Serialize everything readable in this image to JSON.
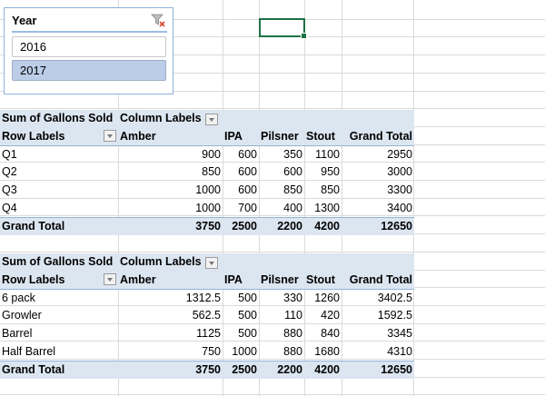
{
  "slicer": {
    "title": "Year",
    "items": [
      {
        "label": "2016",
        "selected": false
      },
      {
        "label": "2017",
        "selected": true
      }
    ],
    "clear_filter_icon": "filter-clear-icon"
  },
  "pivot1": {
    "value_label": "Sum of Gallons Sold",
    "column_labels": "Column Labels",
    "row_labels": "Row Labels",
    "columns": [
      "Amber",
      "IPA",
      "Pilsner",
      "Stout",
      "Grand Total"
    ],
    "rows": [
      {
        "label": "Q1",
        "values": [
          "900",
          "600",
          "350",
          "1100",
          "2950"
        ]
      },
      {
        "label": "Q2",
        "values": [
          "850",
          "600",
          "600",
          "950",
          "3000"
        ]
      },
      {
        "label": "Q3",
        "values": [
          "1000",
          "600",
          "850",
          "850",
          "3300"
        ]
      },
      {
        "label": "Q4",
        "values": [
          "1000",
          "700",
          "400",
          "1300",
          "3400"
        ]
      }
    ],
    "total": {
      "label": "Grand Total",
      "values": [
        "3750",
        "2500",
        "2200",
        "4200",
        "12650"
      ]
    }
  },
  "pivot2": {
    "value_label": "Sum of Gallons Sold",
    "column_labels": "Column Labels",
    "row_labels": "Row Labels",
    "columns": [
      "Amber",
      "IPA",
      "Pilsner",
      "Stout",
      "Grand Total"
    ],
    "rows": [
      {
        "label": "6 pack",
        "values": [
          "1312.5",
          "500",
          "330",
          "1260",
          "3402.5"
        ]
      },
      {
        "label": "Growler",
        "values": [
          "562.5",
          "500",
          "110",
          "420",
          "1592.5"
        ]
      },
      {
        "label": "Barrel",
        "values": [
          "1125",
          "500",
          "880",
          "840",
          "3345"
        ]
      },
      {
        "label": "Half Barrel",
        "values": [
          "750",
          "1000",
          "880",
          "1680",
          "4310"
        ]
      }
    ],
    "total": {
      "label": "Grand Total",
      "values": [
        "3750",
        "2500",
        "2200",
        "4200",
        "12650"
      ]
    }
  },
  "colors": {
    "pivot_header": "#dce6f1",
    "selection": "#1e7145",
    "slicer_selected": "#bccde8"
  }
}
